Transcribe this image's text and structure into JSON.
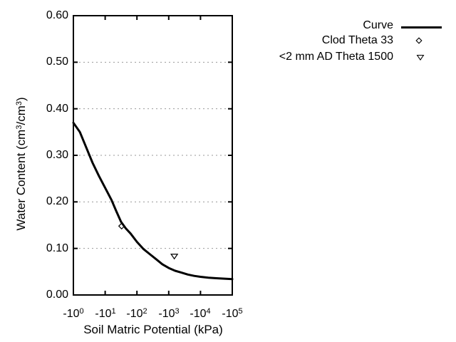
{
  "figure": {
    "background": "#ffffff",
    "text_color": "#000000",
    "line_color": "#000000",
    "grid_color": "#999999"
  },
  "axes": {
    "x": {
      "label": "Soil Matric Potential (kPa)",
      "ticks": [
        {
          "base": "-10",
          "exp": "0"
        },
        {
          "base": "-10",
          "exp": "1"
        },
        {
          "base": "-10",
          "exp": "2"
        },
        {
          "base": "-10",
          "exp": "3"
        },
        {
          "base": "-10",
          "exp": "4"
        },
        {
          "base": "-10",
          "exp": "5"
        }
      ]
    },
    "y": {
      "label_parts": {
        "p1": "Water Content (cm",
        "s1": "3",
        "p2": "/cm",
        "s2": "3",
        "p3": ")"
      },
      "ticks": [
        "0.60",
        "0.50",
        "0.40",
        "0.30",
        "0.20",
        "0.10",
        "0.00"
      ]
    }
  },
  "legend": {
    "items": [
      {
        "label": "Curve",
        "marker": "line"
      },
      {
        "label": "Clod Theta 33",
        "marker": "open-diamond"
      },
      {
        "label": "<2 mm AD Theta 1500",
        "marker": "open-triangle-down"
      }
    ]
  },
  "chart_data": {
    "type": "line",
    "title": "",
    "xlabel": "Soil Matric Potential (kPa)",
    "ylabel": "Water Content (cm3/cm3)",
    "x_scale": "negative-log10",
    "x_ticks": [
      "-10^0",
      "-10^1",
      "-10^2",
      "-10^3",
      "-10^4",
      "-10^5"
    ],
    "xlim": [
      -1,
      -100000
    ],
    "ylim": [
      0.0,
      0.6
    ],
    "y_tick_step": 0.1,
    "grid": {
      "y_values": [
        0.1,
        0.2,
        0.3,
        0.4,
        0.5
      ],
      "style": "dashed-gray-horizontal"
    },
    "legend_position": "outside-top-right",
    "series": [
      {
        "name": "Curve",
        "type": "line",
        "color": "#000000",
        "points": [
          [
            -1,
            0.37
          ],
          [
            -1.6,
            0.35
          ],
          [
            -2.5,
            0.318
          ],
          [
            -4,
            0.284
          ],
          [
            -6.3,
            0.256
          ],
          [
            -10,
            0.23
          ],
          [
            -15.8,
            0.204
          ],
          [
            -22.4,
            0.18
          ],
          [
            -31.6,
            0.157
          ],
          [
            -44.7,
            0.143
          ],
          [
            -63.1,
            0.132
          ],
          [
            -100,
            0.114
          ],
          [
            -158,
            0.099
          ],
          [
            -251,
            0.088
          ],
          [
            -398,
            0.077
          ],
          [
            -631,
            0.066
          ],
          [
            -1000,
            0.058
          ],
          [
            -1585,
            0.052
          ],
          [
            -2512,
            0.048
          ],
          [
            -3981,
            0.044
          ],
          [
            -6310,
            0.041
          ],
          [
            -10000,
            0.039
          ],
          [
            -17783,
            0.037
          ],
          [
            -31623,
            0.036
          ],
          [
            -56234,
            0.035
          ],
          [
            -100000,
            0.034
          ]
        ]
      },
      {
        "name": "Clod Theta 33",
        "type": "scatter",
        "marker": "open-diamond",
        "color": "#000000",
        "points": [
          [
            -33,
            0.148
          ]
        ]
      },
      {
        "name": "<2 mm AD Theta 1500",
        "type": "scatter",
        "marker": "open-triangle-down",
        "color": "#000000",
        "points": [
          [
            -1500,
            0.083
          ]
        ]
      }
    ]
  }
}
